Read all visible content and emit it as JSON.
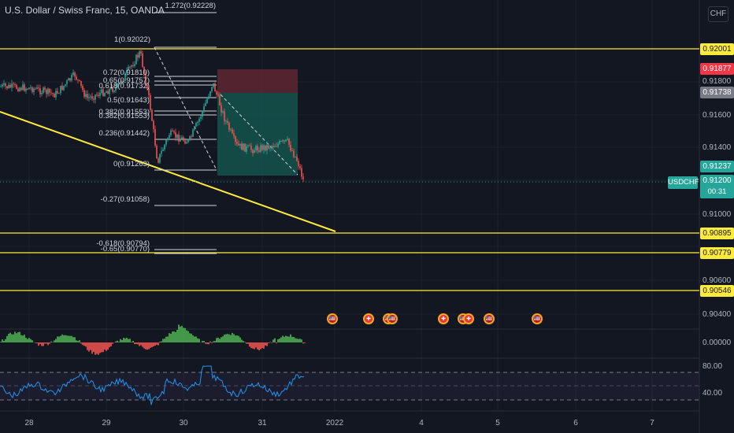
{
  "header": {
    "title": "U.S. Dollar / Swiss Franc, 15, OANDA",
    "currency_button": "CHF"
  },
  "price_scale": {
    "ticks": [
      "0.91800",
      "0.91600",
      "0.91400",
      "0.91000",
      "0.90600",
      "0.90400"
    ],
    "labels": {
      "level_1": "0.92001",
      "sell_price": "0.91877",
      "current_gray": "0.91738",
      "bid": "0.91237",
      "level_2": "0.90895",
      "level_3": "0.90779",
      "level_4": "0.90546"
    },
    "colors": {
      "level": "#ffeb3b",
      "sell": "#f23645",
      "gray": "#787b86",
      "buy": "#26a69a"
    }
  },
  "last_price": {
    "symbol": "USDCHF",
    "price": "0.91200",
    "countdown": "00:31"
  },
  "fibonacci": {
    "labels": [
      "1.272(0.92228)",
      "1(0.92022)",
      "0.72(0.91810)",
      "0.65(0.91757)",
      "0.618(0.91732)",
      "0.5(0.91643)",
      "0.382(0.91553)",
      "0.382(0.91553)",
      "0.236(0.91442)",
      "0(0.91263)",
      "-0.27(0.91058)",
      "-0.618(0.90794)",
      "-0.65(0.90770)"
    ]
  },
  "oscillators": {
    "macd_tick": "0.00000",
    "rsi_ticks": [
      "80.00",
      "40.00"
    ]
  },
  "time_axis": {
    "labels": [
      "28",
      "29",
      "30",
      "31",
      "2022",
      "4",
      "5",
      "6",
      "7"
    ]
  },
  "events": [
    {
      "name": "us-flag-icon",
      "glyph": "🇺🇸"
    },
    {
      "name": "swiss-flag-icon",
      "glyph": "✚"
    },
    {
      "name": "us-flag-icon",
      "glyph": "🇺🇸"
    },
    {
      "name": "us-flag-icon",
      "glyph": "🇺🇸"
    },
    {
      "name": "swiss-flag-icon",
      "glyph": "✚"
    },
    {
      "name": "us-flag-icon",
      "glyph": "🇺🇸"
    },
    {
      "name": "swiss-flag-icon",
      "glyph": "✚"
    },
    {
      "name": "us-flag-icon",
      "glyph": "🇺🇸"
    },
    {
      "name": "us-flag-icon",
      "glyph": "🇺🇸"
    }
  ]
}
